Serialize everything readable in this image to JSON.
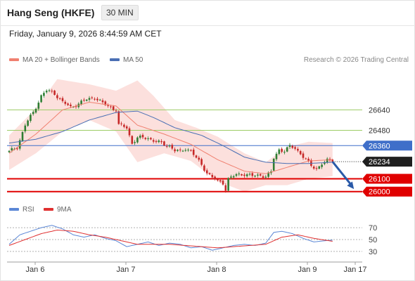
{
  "header": {
    "title": "Hang Seng (HKFE)",
    "timeframe": "30 MIN",
    "datetime": "Friday, January 9, 2026 8:44:59 AM CET"
  },
  "legend": {
    "bollinger_label": "MA 20 + Bollinger Bands",
    "ma50_label": "MA 50",
    "credit": "Research © 2026 Trading Central",
    "rsi_label": "RSI",
    "rsi_ma_label": "9MA"
  },
  "colors": {
    "up": "#2e7d32",
    "down": "#c62828",
    "ma20": "#f08070",
    "band": "#fbd5d2",
    "ma50": "#4a6fb4",
    "support": "#e00000",
    "resistance": "#9ccc65",
    "pivot": "#3f6fc9",
    "arrow": "#2a5aa8",
    "rsi": "#5b87d6",
    "rsi_ma": "#e03030"
  },
  "chart_data": [
    {
      "type": "candlestick",
      "series": [
        {
          "name": "MA 20 + Bollinger Bands"
        },
        {
          "name": "MA 50"
        }
      ],
      "x_tick_labels": [
        "Jan 6",
        "Jan 7",
        "Jan 8",
        "Jan 9",
        "Jan 17"
      ],
      "ylim": [
        25960,
        26950
      ],
      "levels": [
        {
          "value": 26640,
          "label": "26640",
          "kind": "resistance"
        },
        {
          "value": 26480,
          "label": "26480",
          "kind": "resistance"
        },
        {
          "value": 26360,
          "label": "26360",
          "kind": "pivot"
        },
        {
          "value": 26100,
          "label": "26100",
          "kind": "support"
        },
        {
          "value": 26000,
          "label": "26000",
          "kind": "support"
        }
      ],
      "last_price": {
        "value": 26234,
        "label": "26234"
      },
      "close_path": [
        [
          0,
          26310
        ],
        [
          3,
          26350
        ],
        [
          6,
          26520
        ],
        [
          9,
          26620
        ],
        [
          12,
          26750
        ],
        [
          14,
          26790
        ],
        [
          17,
          26770
        ],
        [
          20,
          26700
        ],
        [
          23,
          26660
        ],
        [
          26,
          26690
        ],
        [
          29,
          26720
        ],
        [
          32,
          26740
        ],
        [
          35,
          26690
        ],
        [
          38,
          26660
        ],
        [
          40,
          26640
        ],
        [
          41,
          26520
        ],
        [
          44,
          26500
        ],
        [
          46,
          26380
        ],
        [
          48,
          26420
        ],
        [
          52,
          26420
        ],
        [
          55,
          26390
        ],
        [
          58,
          26370
        ],
        [
          60,
          26360
        ],
        [
          62,
          26320
        ],
        [
          64,
          26310
        ],
        [
          66,
          26340
        ],
        [
          68,
          26320
        ],
        [
          70,
          26260
        ],
        [
          72,
          26210
        ],
        [
          74,
          26150
        ],
        [
          76,
          26110
        ],
        [
          78,
          26080
        ],
        [
          80,
          26070
        ],
        [
          81,
          26020
        ],
        [
          82,
          26100
        ],
        [
          85,
          26130
        ],
        [
          88,
          26140
        ],
        [
          91,
          26120
        ],
        [
          94,
          26130
        ],
        [
          96,
          26120
        ],
        [
          98,
          26150
        ],
        [
          99,
          26260
        ],
        [
          101,
          26330
        ],
        [
          103,
          26320
        ],
        [
          105,
          26350
        ],
        [
          107,
          26340
        ],
        [
          109,
          26300
        ],
        [
          111,
          26250
        ],
        [
          113,
          26200
        ],
        [
          115,
          26180
        ],
        [
          117,
          26220
        ],
        [
          119,
          26240
        ],
        [
          121,
          26234
        ]
      ],
      "ma20_path": [
        [
          0,
          26300
        ],
        [
          10,
          26450
        ],
        [
          20,
          26640
        ],
        [
          30,
          26700
        ],
        [
          40,
          26670
        ],
        [
          48,
          26520
        ],
        [
          58,
          26450
        ],
        [
          68,
          26370
        ],
        [
          78,
          26250
        ],
        [
          88,
          26160
        ],
        [
          96,
          26140
        ],
        [
          104,
          26190
        ],
        [
          112,
          26240
        ],
        [
          121,
          26250
        ]
      ],
      "band_upper": [
        [
          0,
          26440
        ],
        [
          10,
          26650
        ],
        [
          18,
          26880
        ],
        [
          30,
          26840
        ],
        [
          40,
          26790
        ],
        [
          48,
          26870
        ],
        [
          54,
          26750
        ],
        [
          62,
          26560
        ],
        [
          70,
          26500
        ],
        [
          78,
          26430
        ],
        [
          88,
          26300
        ],
        [
          96,
          26230
        ],
        [
          104,
          26350
        ],
        [
          112,
          26390
        ],
        [
          121,
          26380
        ]
      ],
      "band_lower": [
        [
          0,
          26170
        ],
        [
          10,
          26300
        ],
        [
          20,
          26470
        ],
        [
          30,
          26560
        ],
        [
          40,
          26470
        ],
        [
          48,
          26230
        ],
        [
          58,
          26300
        ],
        [
          68,
          26240
        ],
        [
          78,
          26080
        ],
        [
          88,
          26000
        ],
        [
          96,
          26050
        ],
        [
          104,
          26050
        ],
        [
          112,
          26100
        ],
        [
          121,
          26120
        ]
      ],
      "ma50_path": [
        [
          0,
          26380
        ],
        [
          10,
          26410
        ],
        [
          20,
          26470
        ],
        [
          30,
          26560
        ],
        [
          40,
          26620
        ],
        [
          48,
          26630
        ],
        [
          54,
          26580
        ],
        [
          62,
          26500
        ],
        [
          72,
          26440
        ],
        [
          80,
          26360
        ],
        [
          88,
          26270
        ],
        [
          96,
          26230
        ],
        [
          104,
          26220
        ],
        [
          112,
          26220
        ],
        [
          121,
          26230
        ]
      ],
      "projection": {
        "from": [
          121,
          26234
        ],
        "to": [
          129,
          26020
        ]
      }
    },
    {
      "type": "line",
      "series": [
        {
          "name": "RSI"
        },
        {
          "name": "9MA"
        }
      ],
      "ylim": [
        18,
        82
      ],
      "y_ticks": [
        "70",
        "50",
        "30"
      ],
      "rsi_path": [
        [
          0,
          42
        ],
        [
          4,
          58
        ],
        [
          8,
          64
        ],
        [
          12,
          70
        ],
        [
          16,
          74
        ],
        [
          20,
          68
        ],
        [
          24,
          58
        ],
        [
          28,
          54
        ],
        [
          32,
          58
        ],
        [
          36,
          52
        ],
        [
          40,
          48
        ],
        [
          44,
          38
        ],
        [
          48,
          42
        ],
        [
          52,
          46
        ],
        [
          56,
          40
        ],
        [
          60,
          44
        ],
        [
          64,
          42
        ],
        [
          68,
          36
        ],
        [
          72,
          38
        ],
        [
          76,
          32
        ],
        [
          80,
          36
        ],
        [
          84,
          40
        ],
        [
          88,
          42
        ],
        [
          92,
          40
        ],
        [
          96,
          44
        ],
        [
          99,
          62
        ],
        [
          102,
          64
        ],
        [
          106,
          60
        ],
        [
          110,
          52
        ],
        [
          114,
          46
        ],
        [
          118,
          48
        ],
        [
          121,
          49
        ]
      ],
      "ma_path": [
        [
          0,
          40
        ],
        [
          6,
          50
        ],
        [
          12,
          60
        ],
        [
          18,
          66
        ],
        [
          24,
          64
        ],
        [
          30,
          58
        ],
        [
          36,
          54
        ],
        [
          42,
          48
        ],
        [
          48,
          42
        ],
        [
          54,
          42
        ],
        [
          60,
          42
        ],
        [
          66,
          40
        ],
        [
          72,
          38
        ],
        [
          78,
          36
        ],
        [
          84,
          38
        ],
        [
          90,
          40
        ],
        [
          96,
          42
        ],
        [
          102,
          54
        ],
        [
          108,
          58
        ],
        [
          114,
          52
        ],
        [
          121,
          47
        ]
      ]
    }
  ]
}
